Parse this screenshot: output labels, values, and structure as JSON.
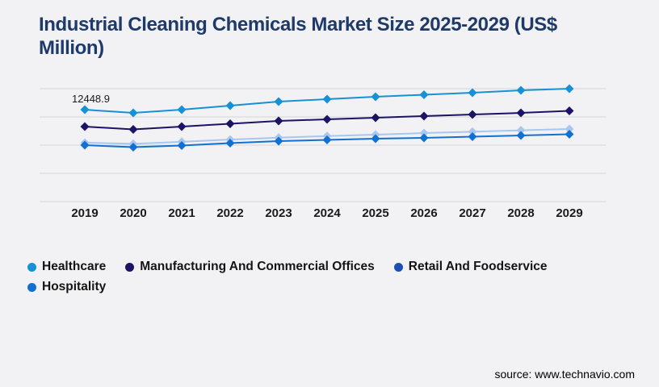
{
  "header": {
    "title": "Industrial Cleaning Chemicals Market Size 2025-2029 (US$\nMillion)",
    "title_color": "#1e3a6a"
  },
  "footer": {
    "source_text": "source: www.technavio.com"
  },
  "colors": {
    "background": "#f2f2f4",
    "gridline": "#d5d5d7",
    "axis_text": "#1a1a1a"
  },
  "chart_data": {
    "type": "line",
    "title": "Industrial Cleaning Chemicals Market Size 2025-2029 (US$ Million)",
    "xlabel": "",
    "ylabel": "US$ Million",
    "x": [
      "2019",
      "2020",
      "2021",
      "2022",
      "2023",
      "2024",
      "2025",
      "2026",
      "2027",
      "2028",
      "2029"
    ],
    "ylim": [
      0,
      16930
    ],
    "grid": "horizontal",
    "legend_position": "bottom-left",
    "marker": "diamond",
    "series": [
      {
        "name": "Healthcare",
        "color": "#1691d3",
        "line_color": "#1691d3",
        "values": [
          12448.9,
          12010,
          12450,
          13000,
          13540,
          13870,
          14200,
          14470,
          14740,
          15070,
          15290
        ]
      },
      {
        "name": "Manufacturing And Commercial Offices",
        "color": "#1b1464",
        "line_color": "#1b1464",
        "values": [
          10160,
          9770,
          10160,
          10540,
          10920,
          11140,
          11360,
          11580,
          11790,
          12010,
          12290
        ]
      },
      {
        "name": "Retail And Foodservice",
        "color": "#1d4fb2",
        "line_color": "#a7c7f0",
        "values": [
          7970,
          7820,
          8100,
          8400,
          8650,
          8880,
          9060,
          9280,
          9460,
          9650,
          9830
        ]
      },
      {
        "name": "Hospitality",
        "color": "#1170d0",
        "line_color": "#1170d0",
        "values": [
          7640,
          7370,
          7590,
          7920,
          8190,
          8350,
          8520,
          8630,
          8790,
          8950,
          9120
        ]
      }
    ],
    "annotation": {
      "text": "12448.9",
      "series_index": 0,
      "x_index": 0
    }
  }
}
